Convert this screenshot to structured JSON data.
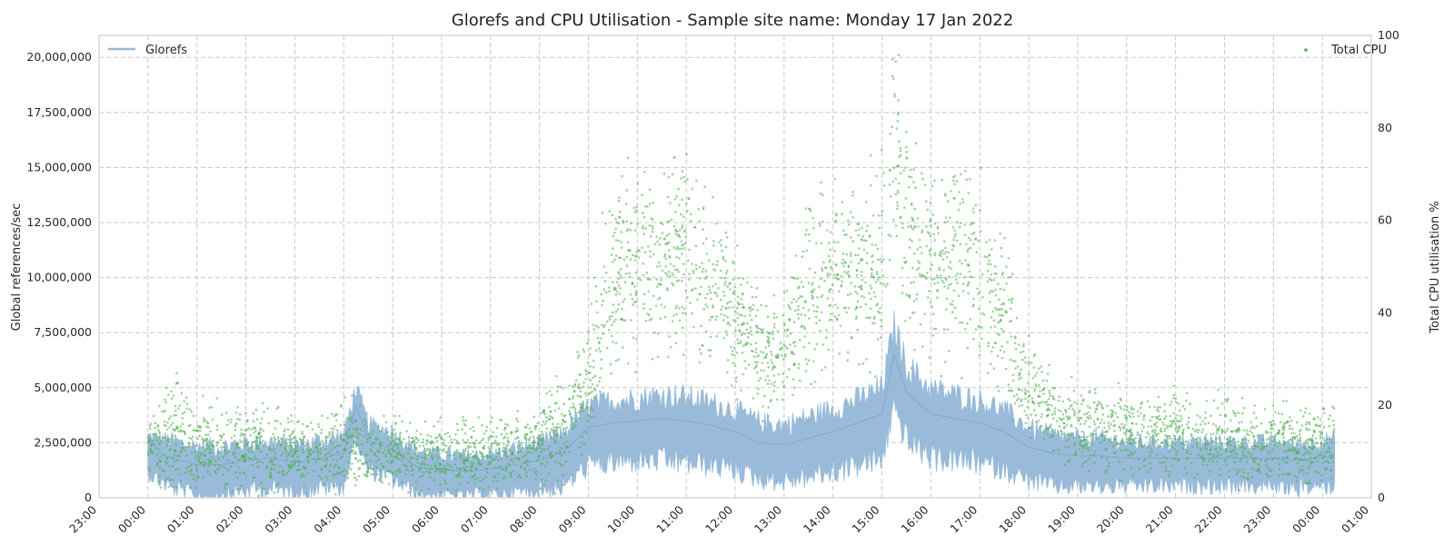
{
  "chart_data": {
    "type": "line",
    "title": "Glorefs and CPU Utilisation - Sample site name: Monday 17 Jan 2022",
    "xlabel": "",
    "ylabel_left": "Global references/sec",
    "ylabel_right": "Total CPU utilisation %",
    "x_ticks": [
      "23:00",
      "00:00",
      "01:00",
      "02:00",
      "03:00",
      "04:00",
      "05:00",
      "06:00",
      "07:00",
      "08:00",
      "09:00",
      "10:00",
      "11:00",
      "12:00",
      "13:00",
      "14:00",
      "15:00",
      "16:00",
      "17:00",
      "18:00",
      "19:00",
      "20:00",
      "21:00",
      "22:00",
      "23:00",
      "00:00",
      "01:00"
    ],
    "x_range_hours": [
      -1,
      25
    ],
    "y_left_ticks": [
      "0",
      "2,500,000",
      "5,000,000",
      "7,500,000",
      "10,000,000",
      "12,500,000",
      "15,000,000",
      "17,500,000",
      "20,000,000"
    ],
    "y_left_range": [
      0,
      21000000
    ],
    "y_right_ticks": [
      "0",
      "20",
      "40",
      "60",
      "80",
      "100"
    ],
    "y_right_range": [
      0,
      100
    ],
    "grid": true,
    "legend_left": "top-left",
    "legend_right": "top-right",
    "colors": {
      "glorefs": "#94b8d8",
      "cpu": "#4daf4a"
    },
    "series": [
      {
        "name": "Glorefs",
        "axis": "left",
        "style": "line",
        "x_hours": [
          0,
          0.5,
          1,
          1.5,
          2,
          2.5,
          3,
          3.5,
          4,
          4.25,
          4.5,
          5,
          5.5,
          6,
          6.5,
          7,
          7.5,
          8,
          8.5,
          9,
          9.5,
          10,
          10.5,
          11,
          11.5,
          12,
          12.5,
          13,
          13.5,
          14,
          14.5,
          15,
          15.25,
          15.5,
          16,
          16.5,
          17,
          17.5,
          18,
          18.5,
          19,
          19.5,
          20,
          20.5,
          21,
          21.5,
          22,
          22.5,
          23,
          23.5,
          24.25
        ],
        "values": [
          2200000,
          1800000,
          1500000,
          1500000,
          1700000,
          1800000,
          1600000,
          1800000,
          2000000,
          4200000,
          2600000,
          2200000,
          1400000,
          1300000,
          1200000,
          1300000,
          1500000,
          1700000,
          2100000,
          3200000,
          3400000,
          3500000,
          3600000,
          3500000,
          3300000,
          3000000,
          2500000,
          2400000,
          2700000,
          3000000,
          3400000,
          3800000,
          6500000,
          4800000,
          3800000,
          3600000,
          3400000,
          3000000,
          2300000,
          2000000,
          1900000,
          1900000,
          1800000,
          1800000,
          1800000,
          1800000,
          1800000,
          1800000,
          1800000,
          1700000,
          1900000
        ],
        "band": [
          1200000,
          1500000,
          1600000,
          1600000,
          1500000,
          1500000,
          1500000,
          1500000,
          1600000,
          1600000,
          1500000,
          1500000,
          1400000,
          1300000,
          1300000,
          1300000,
          1400000,
          1500000,
          1700000,
          1900000,
          2000000,
          2000000,
          2100000,
          2100000,
          2000000,
          1900000,
          1800000,
          1800000,
          1900000,
          2000000,
          2100000,
          2300000,
          2600000,
          2400000,
          2200000,
          2100000,
          2000000,
          1900000,
          1700000,
          1600000,
          1500000,
          1500000,
          1400000,
          1400000,
          1400000,
          1400000,
          1400000,
          1400000,
          1400000,
          1400000,
          1500000
        ]
      },
      {
        "name": "Total CPU",
        "axis": "right",
        "style": "scatter",
        "x_hours": [
          0,
          0.5,
          1,
          1.5,
          2,
          2.5,
          3,
          3.5,
          4,
          4.5,
          5,
          5.5,
          6,
          6.5,
          7,
          7.5,
          8,
          8.5,
          9,
          9.5,
          10,
          10.5,
          11,
          11.5,
          12,
          12.5,
          13,
          13.5,
          14,
          14.5,
          15,
          15.25,
          15.5,
          16,
          16.5,
          17,
          17.5,
          18,
          18.5,
          19,
          19.5,
          20,
          20.5,
          21,
          21.5,
          22,
          22.5,
          23,
          23.5,
          24,
          24.25
        ],
        "values": [
          12,
          13,
          11,
          10,
          11,
          10,
          10,
          10,
          11,
          10,
          10,
          9,
          9,
          9,
          9,
          11,
          12,
          15,
          25,
          50,
          50,
          52,
          53,
          48,
          38,
          30,
          33,
          45,
          48,
          50,
          52,
          78,
          55,
          52,
          53,
          48,
          38,
          22,
          18,
          16,
          15,
          14,
          14,
          14,
          13,
          13,
          12,
          12,
          11,
          11,
          12
        ],
        "spread": [
          4,
          9,
          6,
          6,
          7,
          6,
          5,
          5,
          7,
          5,
          5,
          5,
          5,
          5,
          5,
          5,
          6,
          7,
          9,
          14,
          12,
          13,
          14,
          13,
          11,
          9,
          10,
          13,
          12,
          13,
          14,
          22,
          16,
          14,
          14,
          13,
          11,
          7,
          6,
          6,
          6,
          6,
          6,
          6,
          6,
          6,
          6,
          6,
          6,
          6,
          6
        ]
      }
    ]
  }
}
